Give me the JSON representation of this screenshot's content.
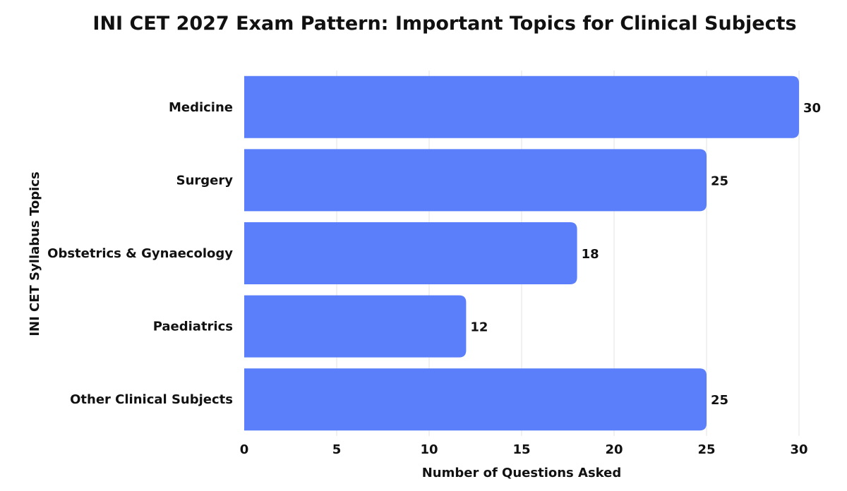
{
  "chart_data": {
    "type": "bar",
    "orientation": "horizontal",
    "title": "INI CET 2027 Exam Pattern: Important Topics for Clinical Subjects",
    "xlabel": "Number of Questions Asked",
    "ylabel": "INI CET Syllabus Topics",
    "categories": [
      "Medicine",
      "Surgery",
      "Obstetrics & Gynaecology",
      "Paediatrics",
      "Other Clinical Subjects"
    ],
    "values": [
      30,
      25,
      18,
      12,
      25
    ],
    "xlim": [
      0,
      30
    ],
    "xticks": [
      "0",
      "5",
      "10",
      "15",
      "20",
      "25",
      "30"
    ],
    "data_labels": [
      "30",
      "25",
      "18",
      "12",
      "25"
    ],
    "grid": "vertical",
    "legend": "none",
    "colors": {
      "bar": "#5b7ffa",
      "grid": "#e3e3e3",
      "text": "#111111"
    }
  }
}
